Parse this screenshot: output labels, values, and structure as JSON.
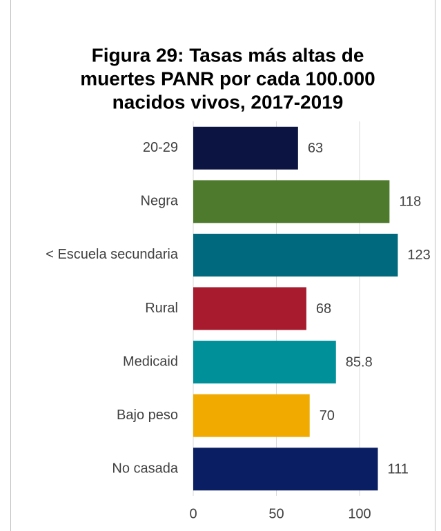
{
  "chart_data": {
    "type": "hbar",
    "title": [
      "Figura 29: Tasas más altas de",
      "muertes PANR por cada 100.000",
      "nacidos vivos, 2017-2019"
    ],
    "categories": [
      "20-29",
      "Negra",
      "< Escuela secundaria",
      "Rural",
      "Medicaid",
      "Bajo peso",
      "No casada"
    ],
    "values": [
      63,
      118,
      123,
      68,
      85.8,
      70,
      111
    ],
    "colors": [
      "#0c1541",
      "#4e7a2d",
      "#00697e",
      "#a81a2e",
      "#00909a",
      "#f0aa00",
      "#0a1f63"
    ],
    "xlim": [
      0,
      140
    ],
    "xticks": [
      0,
      50,
      100
    ],
    "grid": true
  }
}
